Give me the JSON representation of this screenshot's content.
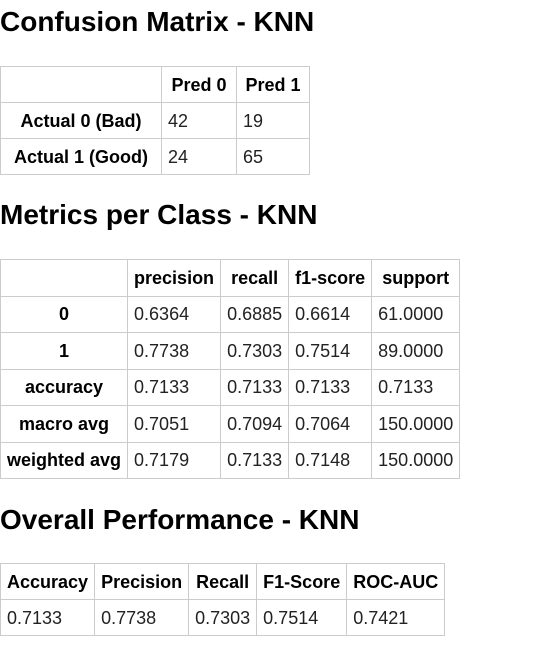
{
  "confusion_matrix": {
    "title": "Confusion Matrix - KNN",
    "headers": [
      "",
      "Pred 0",
      "Pred 1"
    ],
    "rows": [
      {
        "label": "Actual 0 (Bad)",
        "values": [
          "42",
          "19"
        ]
      },
      {
        "label": "Actual 1 (Good)",
        "values": [
          "24",
          "65"
        ]
      }
    ]
  },
  "metrics_per_class": {
    "title": "Metrics per Class - KNN",
    "headers": [
      "",
      "precision",
      "recall",
      "f1-score",
      "support"
    ],
    "rows": [
      {
        "label": "0",
        "values": [
          "0.6364",
          "0.6885",
          "0.6614",
          "61.0000"
        ]
      },
      {
        "label": "1",
        "values": [
          "0.7738",
          "0.7303",
          "0.7514",
          "89.0000"
        ]
      },
      {
        "label": "accuracy",
        "values": [
          "0.7133",
          "0.7133",
          "0.7133",
          "0.7133"
        ]
      },
      {
        "label": "macro avg",
        "values": [
          "0.7051",
          "0.7094",
          "0.7064",
          "150.0000"
        ]
      },
      {
        "label": "weighted avg",
        "values": [
          "0.7179",
          "0.7133",
          "0.7148",
          "150.0000"
        ]
      }
    ]
  },
  "overall_performance": {
    "title": "Overall Performance - KNN",
    "headers": [
      "Accuracy",
      "Precision",
      "Recall",
      "F1-Score",
      "ROC-AUC"
    ],
    "values": [
      "0.7133",
      "0.7738",
      "0.7303",
      "0.7514",
      "0.7421"
    ]
  }
}
